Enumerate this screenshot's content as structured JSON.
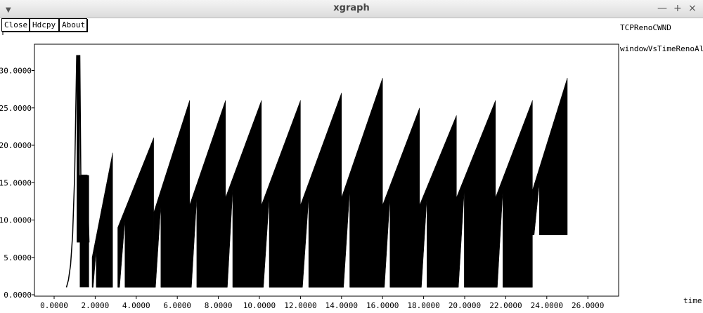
{
  "window": {
    "title": "xgraph",
    "menu_icon": "chevron-down-icon",
    "controls": [
      "minimize-icon",
      "maximize-icon",
      "close-icon"
    ]
  },
  "toolbar": {
    "close_label": "Close",
    "hdcpy_label": "Hdcpy",
    "about_label": "About"
  },
  "chart_data": {
    "type": "line",
    "title": "TCPRenoCWND",
    "xlabel": "time",
    "ylabel": "",
    "xlim": [
      0,
      26
    ],
    "ylim": [
      0,
      33
    ],
    "grid": false,
    "legend": "top-right",
    "x_ticks": [
      "0.0000",
      "2.0000",
      "4.0000",
      "6.0000",
      "8.0000",
      "10.0000",
      "12.0000",
      "14.0000",
      "16.0000",
      "18.0000",
      "20.0000",
      "22.0000",
      "24.0000",
      "26.0000"
    ],
    "y_ticks": [
      "0.0000",
      "5.0000",
      "10.0000",
      "15.0000",
      "20.0000",
      "25.0000",
      "30.0000"
    ],
    "series": [
      {
        "name": "windowVsTimeRenoAll",
        "color": "#000000",
        "startup": [
          [
            0.6,
            1
          ],
          [
            0.7,
            2
          ],
          [
            0.8,
            4
          ],
          [
            0.9,
            8
          ],
          [
            1.0,
            16
          ],
          [
            1.1,
            32
          ],
          [
            1.25,
            32
          ],
          [
            1.3,
            16
          ],
          [
            1.6,
            16
          ],
          [
            1.7,
            7
          ]
        ],
        "sawtooth": [
          {
            "x0": 1.85,
            "x1": 2.85,
            "low": 5,
            "peak": 19,
            "floor": 1
          },
          {
            "x0": 3.1,
            "x1": 4.85,
            "low": 9,
            "peak": 21,
            "floor": 1
          },
          {
            "x0": 4.85,
            "x1": 6.6,
            "low": 11,
            "peak": 26,
            "floor": 1
          },
          {
            "x0": 6.6,
            "x1": 8.35,
            "low": 12,
            "peak": 26,
            "floor": 1
          },
          {
            "x0": 8.35,
            "x1": 10.1,
            "low": 13,
            "peak": 26,
            "floor": 1
          },
          {
            "x0": 10.1,
            "x1": 12.0,
            "low": 12,
            "peak": 26,
            "floor": 1
          },
          {
            "x0": 12.0,
            "x1": 14.0,
            "low": 12,
            "peak": 27,
            "floor": 1
          },
          {
            "x0": 14.0,
            "x1": 16.0,
            "low": 13,
            "peak": 29,
            "floor": 1
          },
          {
            "x0": 16.0,
            "x1": 17.8,
            "low": 12,
            "peak": 25,
            "floor": 1
          },
          {
            "x0": 17.8,
            "x1": 19.6,
            "low": 12,
            "peak": 24,
            "floor": 1
          },
          {
            "x0": 19.6,
            "x1": 21.5,
            "low": 13,
            "peak": 26,
            "floor": 1
          },
          {
            "x0": 21.5,
            "x1": 23.3,
            "low": 13,
            "peak": 26,
            "floor": 1
          },
          {
            "x0": 23.3,
            "x1": 25.0,
            "low": 14,
            "peak": 29,
            "floor": 8
          }
        ]
      }
    ]
  }
}
